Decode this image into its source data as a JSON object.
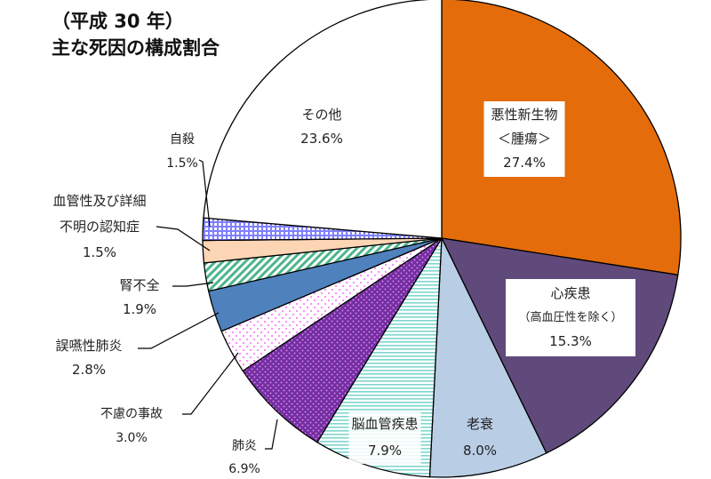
{
  "chart_data": {
    "type": "pie",
    "title": [
      "（平成 30 年）",
      "主な死因の構成割合"
    ],
    "start": "top",
    "direction": "clockwise",
    "slices": [
      {
        "name": "悪性新生物",
        "sub": "＜腫瘍＞",
        "value": 27.4,
        "label": "27.4%",
        "color": "#E46C0A",
        "pattern": "solid"
      },
      {
        "name": "心疾患",
        "sub": "（高血圧性を除く）",
        "value": 15.3,
        "label": "15.3%",
        "color": "#604A7B",
        "pattern": "solid"
      },
      {
        "name": "老衰",
        "value": 8.0,
        "label": "8.0%",
        "color": "#B9CDE5",
        "pattern": "solid"
      },
      {
        "name": "脳血管疾患",
        "value": 7.9,
        "label": "7.9%",
        "color": "#7FD6CF",
        "pattern": "hlines"
      },
      {
        "name": "肺炎",
        "value": 6.9,
        "label": "6.9%",
        "color": "#7030A0",
        "pattern": "dots-on-color"
      },
      {
        "name": "不慮の事故",
        "value": 3.0,
        "label": "3.0%",
        "color": "#FF66FF",
        "pattern": "dots-on-white"
      },
      {
        "name": "誤嚥性肺炎",
        "value": 2.8,
        "label": "2.8%",
        "color": "#4F81BD",
        "pattern": "solid"
      },
      {
        "name": "腎不全",
        "value": 1.9,
        "label": "1.9%",
        "color": "#4CB58A",
        "pattern": "diag"
      },
      {
        "name": "血管性及び詳細",
        "sub": "不明の認知症",
        "value": 1.5,
        "label": "1.5%",
        "color": "#FCD5B5",
        "pattern": "solid"
      },
      {
        "name": "自殺",
        "value": 1.5,
        "label": "1.5%",
        "color": "#8080FF",
        "pattern": "grid"
      },
      {
        "name": "その他",
        "value": 23.6,
        "label": "23.6%",
        "color": "#FFFFFF",
        "pattern": "solid"
      }
    ]
  }
}
